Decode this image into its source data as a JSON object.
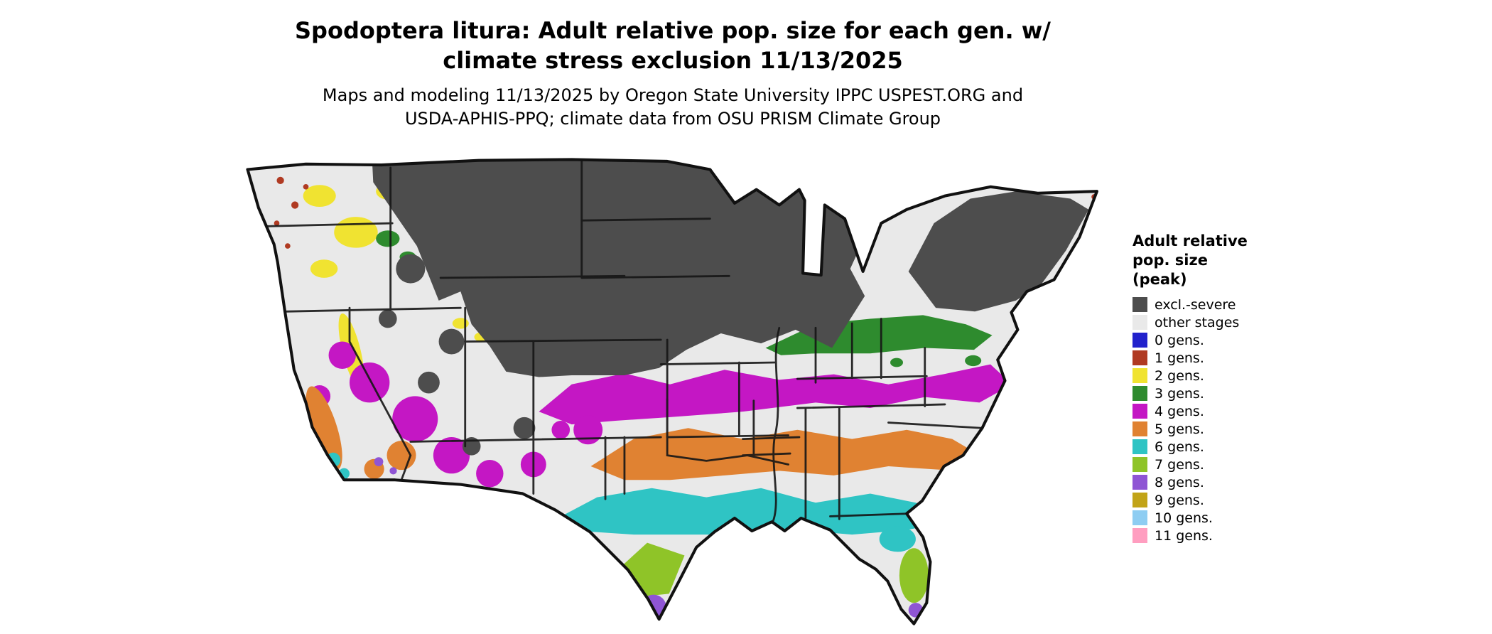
{
  "header": {
    "title_lines": [
      "Spodoptera litura: Adult relative pop. size for each gen. w/",
      "climate stress exclusion 11/13/2025"
    ],
    "subtitle_lines": [
      "Maps and modeling 11/13/2025 by Oregon State University IPPC USPEST.ORG and",
      "USDA-APHIS-PPQ; climate data from OSU PRISM Climate Group"
    ]
  },
  "legend": {
    "title_lines": [
      "Adult relative",
      "pop. size",
      "(peak)"
    ],
    "items": [
      {
        "label": "excl.-severe",
        "color": "#4d4d4d"
      },
      {
        "label": "other stages",
        "color": "#e9e9e9"
      },
      {
        "label": "0 gens.",
        "color": "#2222cc"
      },
      {
        "label": "1 gens.",
        "color": "#b03a22"
      },
      {
        "label": "2 gens.",
        "color": "#f0e331"
      },
      {
        "label": "3 gens.",
        "color": "#2e8b2e"
      },
      {
        "label": "4 gens.",
        "color": "#c417c4"
      },
      {
        "label": "5 gens.",
        "color": "#e08232"
      },
      {
        "label": "6 gens.",
        "color": "#2fc4c4"
      },
      {
        "label": "7 gens.",
        "color": "#8fc428"
      },
      {
        "label": "8 gens.",
        "color": "#8f55d4"
      },
      {
        "label": "9 gens.",
        "color": "#c2a418"
      },
      {
        "label": "10 gens.",
        "color": "#8ecdf2"
      },
      {
        "label": "11 gens.",
        "color": "#ff9ec0"
      }
    ]
  },
  "map": {
    "description": "Continental US map of adult relative population size per generation",
    "border_color": "#111111"
  }
}
